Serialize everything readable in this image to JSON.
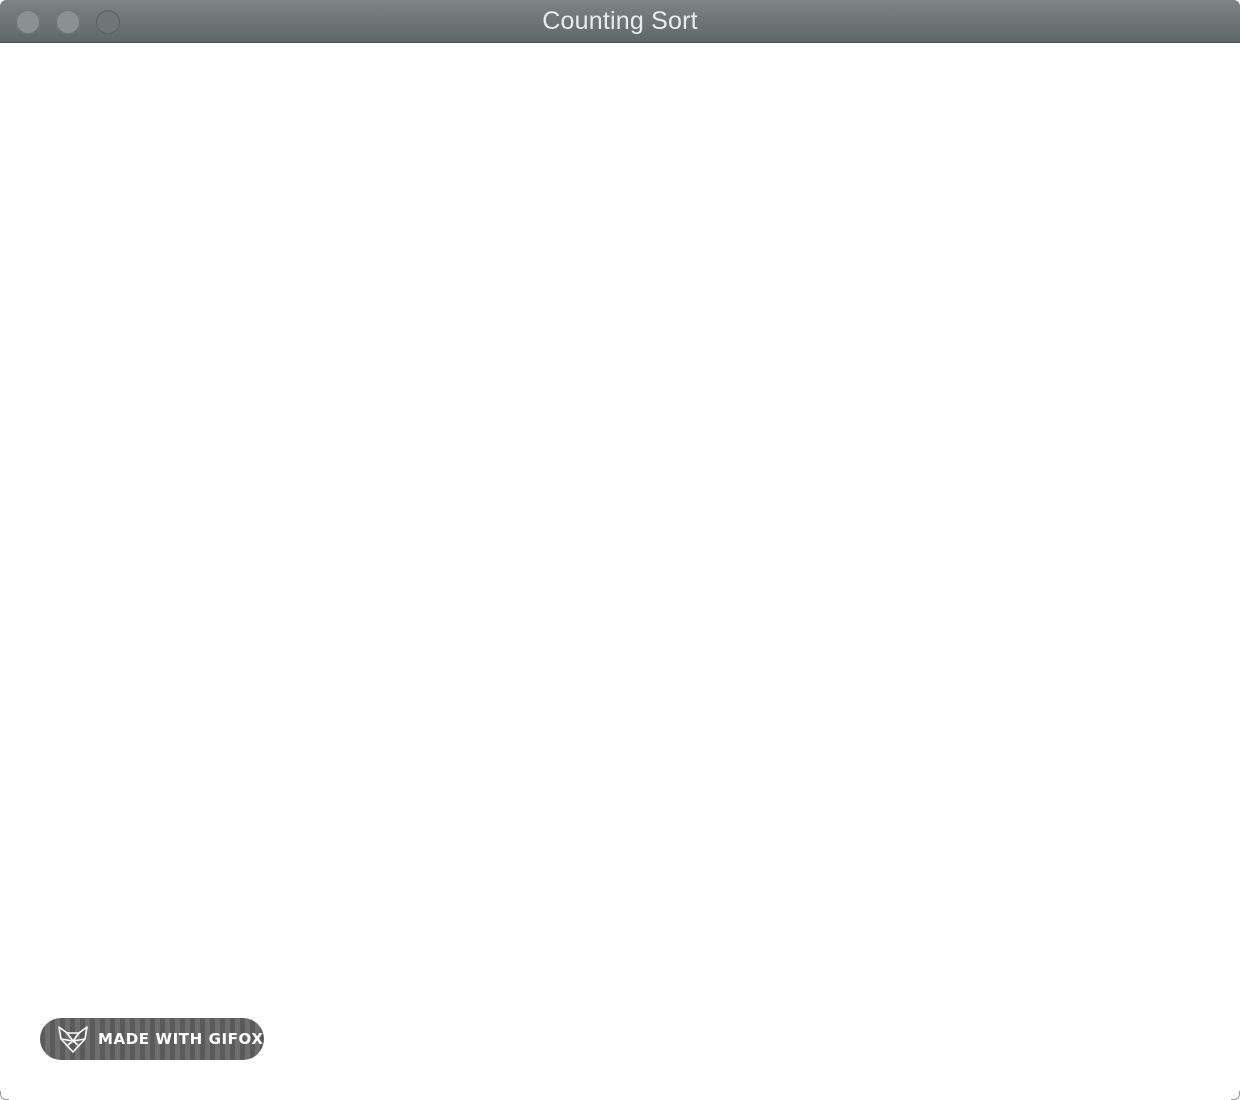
{
  "window": {
    "title": "Counting Sort",
    "titlebar_color": "#6b7375",
    "content_color": "#ffffff"
  },
  "traffic_lights": [
    {
      "name": "close"
    },
    {
      "name": "minimize"
    },
    {
      "name": "zoom"
    }
  ],
  "watermark": {
    "text": "MADE WITH GIFOX",
    "icon": "fox-icon"
  }
}
